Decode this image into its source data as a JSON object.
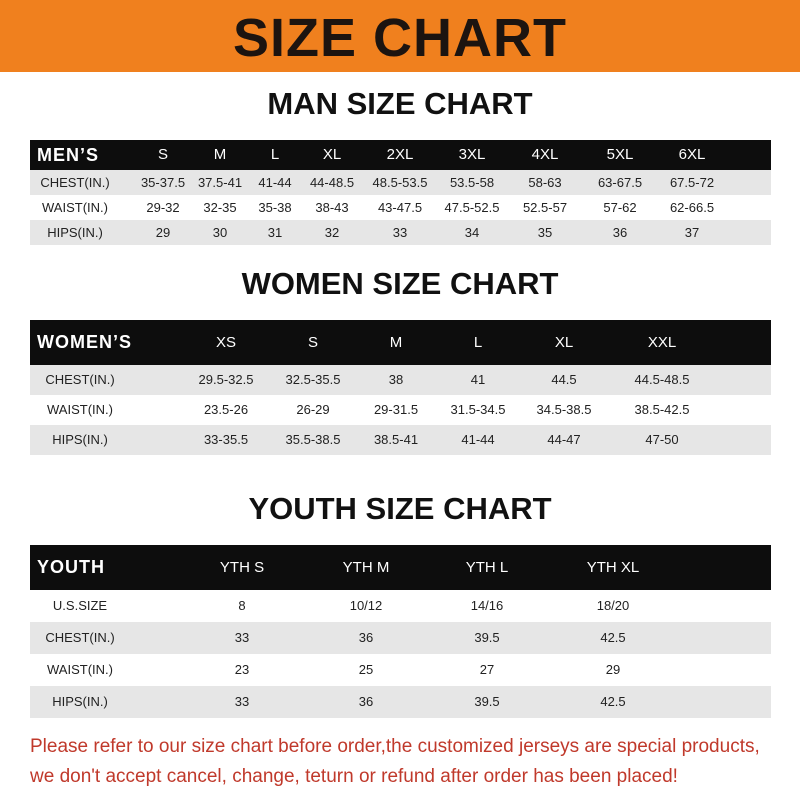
{
  "header": {
    "title": "SIZE CHART"
  },
  "tables": [
    {
      "title": "MAN SIZE CHART",
      "header": [
        "MEN’S",
        "S",
        "M",
        "L",
        "XL",
        "2XL",
        "3XL",
        "4XL",
        "5XL",
        "6XL"
      ],
      "rows": [
        [
          "CHEST(IN.)",
          "35-37.5",
          "37.5-41",
          "41-44",
          "44-48.5",
          "48.5-53.5",
          "53.5-58",
          "58-63",
          "63-67.5",
          "67.5-72"
        ],
        [
          "WAIST(IN.)",
          "29-32",
          "32-35",
          "35-38",
          "38-43",
          "43-47.5",
          "47.5-52.5",
          "52.5-57",
          "57-62",
          "62-66.5"
        ],
        [
          "HIPS(IN.)",
          "29",
          "30",
          "31",
          "32",
          "33",
          "34",
          "35",
          "36",
          "37"
        ]
      ]
    },
    {
      "title": "WOMEN SIZE CHART",
      "header": [
        "WOMEN’S",
        "XS",
        "S",
        "M",
        "L",
        "XL",
        "XXL"
      ],
      "rows": [
        [
          "CHEST(IN.)",
          "29.5-32.5",
          "32.5-35.5",
          "38",
          "41",
          "44.5",
          "44.5-48.5"
        ],
        [
          "WAIST(IN.)",
          "23.5-26",
          "26-29",
          "29-31.5",
          "31.5-34.5",
          "34.5-38.5",
          "38.5-42.5"
        ],
        [
          "HIPS(IN.)",
          "33-35.5",
          "35.5-38.5",
          "38.5-41",
          "41-44",
          "44-47",
          "47-50"
        ]
      ]
    },
    {
      "title": "YOUTH SIZE CHART",
      "header": [
        "YOUTH",
        "YTH S",
        "YTH M",
        "YTH L",
        "YTH XL"
      ],
      "rows": [
        [
          "U.S.SIZE",
          "8",
          "10/12",
          "14/16",
          "18/20"
        ],
        [
          "CHEST(IN.)",
          "33",
          "36",
          "39.5",
          "42.5"
        ],
        [
          "WAIST(IN.)",
          "23",
          "25",
          "27",
          "29"
        ],
        [
          "HIPS(IN.)",
          "33",
          "36",
          "39.5",
          "42.5"
        ]
      ]
    }
  ],
  "footer": {
    "lines": [
      "Please refer to our size chart before order,the customized jerseys are special products,",
      "we don't accept cancel, change, teturn or refund after order has been placed!"
    ]
  }
}
